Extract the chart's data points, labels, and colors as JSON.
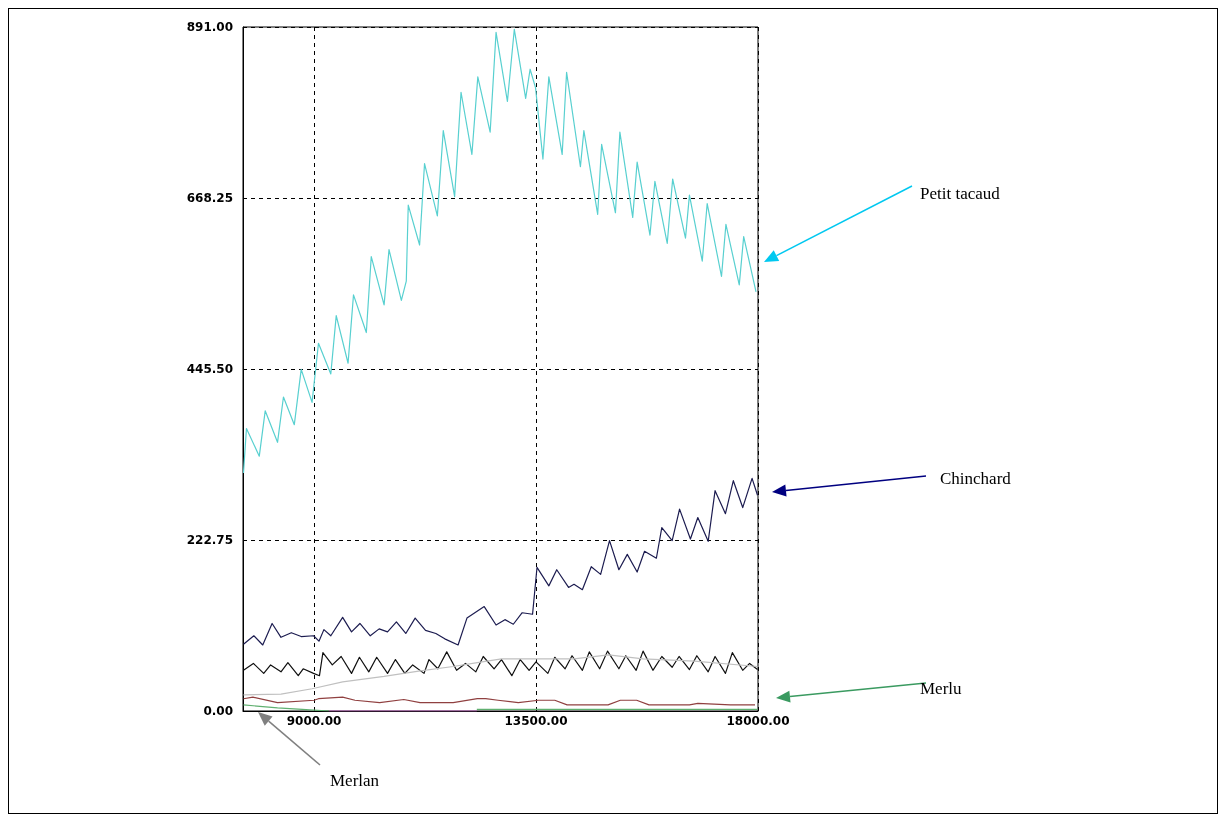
{
  "chart_data": {
    "type": "line",
    "xlim": [
      7560,
      18000
    ],
    "xticks": [
      {
        "value": 9000,
        "label": "9000.00"
      },
      {
        "value": 13500,
        "label": "13500.00"
      },
      {
        "value": 18000,
        "label": "18000.00"
      }
    ],
    "ylim": [
      0,
      891
    ],
    "yticks": [
      {
        "value": 0,
        "label": "0.00"
      },
      {
        "value": 222.75,
        "label": "222.75"
      },
      {
        "value": 445.5,
        "label": "445.50"
      },
      {
        "value": 668.25,
        "label": "668.25"
      },
      {
        "value": 891,
        "label": "891.00"
      }
    ],
    "grid": true,
    "marker": "none",
    "line_style": "solid",
    "annotations": [
      "Petit tacaud",
      "Chinchard",
      "Merlu",
      "Merlan"
    ],
    "series": [
      {
        "color": "#58d0d0",
        "x": [
          7570,
          7630,
          7890,
          8010,
          8260,
          8380,
          8600,
          8740,
          8960,
          9090,
          9340,
          9450,
          9690,
          9800,
          10060,
          10160,
          10420,
          10520,
          10770,
          10870,
          10910,
          11140,
          11240,
          11500,
          11620,
          11850,
          11980,
          12200,
          12320,
          12570,
          12690,
          12920,
          13060,
          13290,
          13380,
          13490,
          13640,
          13760,
          14030,
          14120,
          14400,
          14470,
          14750,
          14830,
          15110,
          15200,
          15460,
          15550,
          15810,
          15910,
          16160,
          16270,
          16530,
          16610,
          16870,
          16970,
          17260,
          17350,
          17620,
          17710,
          17960
        ],
        "values": [
          310,
          368,
          332,
          391,
          350,
          409,
          373,
          445,
          402,
          479,
          439,
          515,
          453,
          542,
          493,
          592,
          529,
          601,
          535,
          560,
          659,
          607,
          713,
          645,
          756,
          670,
          806,
          725,
          826,
          754,
          884,
          794,
          888,
          798,
          836,
          812,
          719,
          826,
          725,
          832,
          709,
          756,
          647,
          738,
          649,
          754,
          643,
          715,
          620,
          690,
          609,
          693,
          616,
          672,
          586,
          661,
          566,
          634,
          555,
          618,
          546
        ]
      },
      {
        "color": "#1c1c50",
        "x": [
          7570,
          7780,
          7960,
          8150,
          8330,
          8540,
          8740,
          8990,
          9100,
          9200,
          9340,
          9580,
          9760,
          9930,
          10140,
          10320,
          10490,
          10670,
          10860,
          11050,
          11260,
          11470,
          11650,
          11920,
          12100,
          12450,
          12690,
          12870,
          13040,
          13220,
          13430,
          13520,
          13760,
          13920,
          14160,
          14270,
          14440,
          14620,
          14810,
          14990,
          15180,
          15350,
          15550,
          15700,
          15940,
          16050,
          16260,
          16410,
          16630,
          16780,
          16990,
          17130,
          17340,
          17500,
          17690,
          17880,
          17990
        ],
        "values": [
          87,
          98,
          86,
          114,
          96,
          102,
          97,
          98,
          91,
          106,
          98,
          122,
          103,
          114,
          98,
          107,
          103,
          116,
          101,
          121,
          105,
          101,
          94,
          86,
          121,
          136,
          112,
          119,
          113,
          128,
          126,
          187,
          163,
          184,
          161,
          165,
          158,
          188,
          178,
          222,
          184,
          204,
          181,
          208,
          199,
          239,
          222,
          263,
          224,
          252,
          221,
          287,
          257,
          300,
          265,
          303,
          281
        ]
      },
      {
        "color": "#101010",
        "x": [
          7570,
          7770,
          7980,
          8120,
          8330,
          8470,
          8680,
          8780,
          8990,
          9110,
          9180,
          9370,
          9550,
          9760,
          9920,
          10110,
          10270,
          10490,
          10650,
          10840,
          11000,
          11230,
          11330,
          11510,
          11690,
          11890,
          12070,
          12280,
          12430,
          12650,
          12800,
          13010,
          13180,
          13360,
          13500,
          13740,
          13880,
          14090,
          14230,
          14440,
          14580,
          14790,
          14950,
          15180,
          15320,
          15530,
          15670,
          15870,
          16050,
          16260,
          16400,
          16610,
          16760,
          16990,
          17130,
          17340,
          17480,
          17690,
          17830,
          17990
        ],
        "values": [
          53,
          62,
          49,
          60,
          51,
          63,
          46,
          55,
          49,
          46,
          76,
          60,
          71,
          49,
          70,
          51,
          70,
          49,
          67,
          49,
          60,
          49,
          67,
          55,
          77,
          53,
          62,
          51,
          71,
          55,
          67,
          46,
          67,
          53,
          64,
          49,
          70,
          55,
          72,
          53,
          77,
          55,
          78,
          55,
          72,
          53,
          78,
          53,
          71,
          57,
          71,
          54,
          72,
          51,
          71,
          49,
          76,
          53,
          62,
          54
        ]
      },
      {
        "color": "#c0c0c0",
        "x": [
          7570,
          8330,
          8960,
          9580,
          10420,
          11120,
          11820,
          12310,
          12800,
          14270,
          14970,
          15670,
          16710,
          17990
        ],
        "values": [
          21,
          22,
          29,
          38,
          45,
          52,
          58,
          63,
          68,
          68,
          73,
          68,
          65,
          58
        ]
      },
      {
        "color": "#904040",
        "x": [
          7570,
          7760,
          8260,
          9000,
          9090,
          9580,
          9830,
          10330,
          10820,
          11150,
          11820,
          12310,
          12480,
          12730,
          13140,
          13550,
          13880,
          14130,
          14960,
          15210,
          15540,
          15790,
          16610,
          16780,
          17440,
          17940
        ],
        "values": [
          16,
          18,
          11,
          14,
          16,
          18,
          14,
          11,
          15,
          11,
          11,
          16,
          16,
          14,
          11,
          14,
          14,
          8,
          8,
          14,
          14,
          8,
          8,
          10,
          8,
          8
        ]
      },
      {
        "color": "#c060c0",
        "x": [
          9300,
          12300
        ],
        "values": [
          0,
          0
        ]
      },
      {
        "color": "#60b070",
        "x": [
          7570,
          8260,
          8760,
          9300,
          9310,
          12300,
          17990
        ],
        "values": [
          8,
          4,
          2,
          0,
          null,
          2,
          2
        ]
      }
    ]
  }
}
